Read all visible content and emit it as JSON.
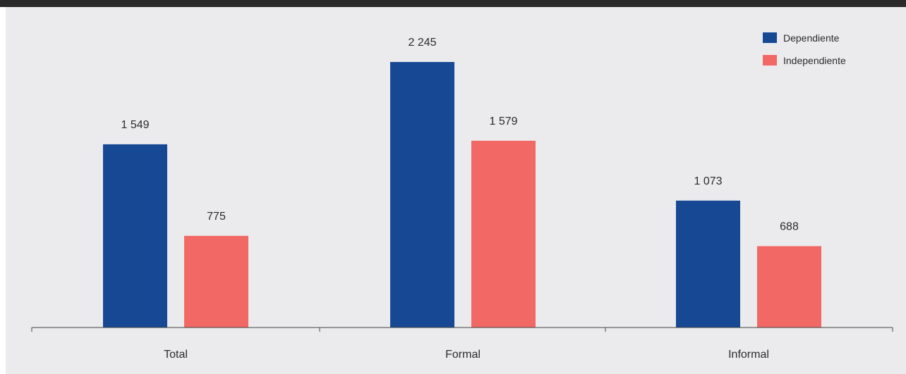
{
  "chart_data": {
    "type": "bar",
    "categories": [
      "Total",
      "Formal",
      "Informal"
    ],
    "series": [
      {
        "name": "Dependiente",
        "values": [
          1549,
          2245,
          1073
        ],
        "labels": [
          "1 549",
          "2 245",
          "1 073"
        ],
        "color": "#164894"
      },
      {
        "name": "Independiente",
        "values": [
          775,
          1579,
          688
        ],
        "labels": [
          "775",
          "1 579",
          "688"
        ],
        "color": "#f16864"
      }
    ],
    "ylim": [
      0,
      2400
    ],
    "legend_position": "top-right",
    "grid": false
  }
}
